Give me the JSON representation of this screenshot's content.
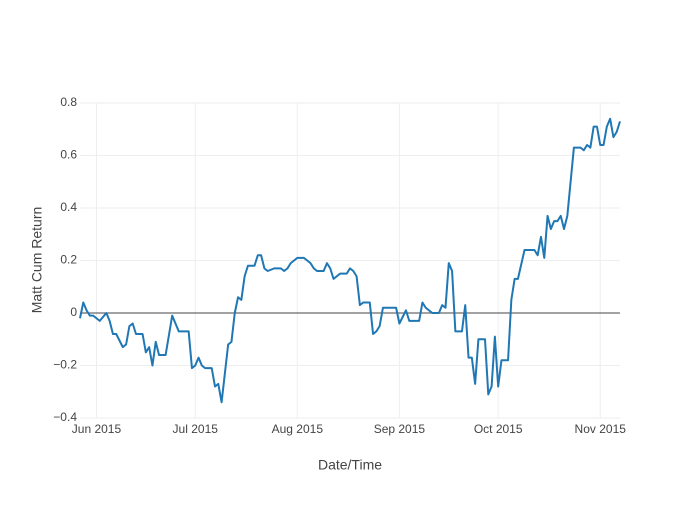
{
  "chart_data": {
    "type": "line",
    "xlabel": "Date/Time",
    "ylabel": "Matt Cum Return",
    "color": "#1f77b4",
    "grid": true,
    "zeroline": true,
    "x": [
      "2015-05-27",
      "2015-05-28",
      "2015-05-29",
      "2015-05-30",
      "2015-05-31",
      "2015-06-01",
      "2015-06-02",
      "2015-06-04",
      "2015-06-05",
      "2015-06-06",
      "2015-06-07",
      "2015-06-09",
      "2015-06-10",
      "2015-06-11",
      "2015-06-12",
      "2015-06-13",
      "2015-06-15",
      "2015-06-16",
      "2015-06-17",
      "2015-06-18",
      "2015-06-19",
      "2015-06-20",
      "2015-06-22",
      "2015-06-24",
      "2015-06-26",
      "2015-06-27",
      "2015-06-29",
      "2015-06-30",
      "2015-07-01",
      "2015-07-02",
      "2015-07-03",
      "2015-07-04",
      "2015-07-06",
      "2015-07-07",
      "2015-07-08",
      "2015-07-09",
      "2015-07-11",
      "2015-07-12",
      "2015-07-13",
      "2015-07-14",
      "2015-07-15",
      "2015-07-16",
      "2015-07-17",
      "2015-07-19",
      "2015-07-20",
      "2015-07-21",
      "2015-07-22",
      "2015-07-23",
      "2015-07-25",
      "2015-07-27",
      "2015-07-28",
      "2015-07-29",
      "2015-07-30",
      "2015-08-01",
      "2015-08-03",
      "2015-08-04",
      "2015-08-05",
      "2015-08-06",
      "2015-08-07",
      "2015-08-09",
      "2015-08-10",
      "2015-08-11",
      "2015-08-12",
      "2015-08-13",
      "2015-08-14",
      "2015-08-16",
      "2015-08-17",
      "2015-08-18",
      "2015-08-19",
      "2015-08-20",
      "2015-08-21",
      "2015-08-23",
      "2015-08-24",
      "2015-08-25",
      "2015-08-26",
      "2015-08-27",
      "2015-08-28",
      "2015-08-30",
      "2015-08-31",
      "2015-09-01",
      "2015-09-03",
      "2015-09-04",
      "2015-09-06",
      "2015-09-07",
      "2015-09-08",
      "2015-09-09",
      "2015-09-11",
      "2015-09-13",
      "2015-09-14",
      "2015-09-15",
      "2015-09-16",
      "2015-09-17",
      "2015-09-18",
      "2015-09-20",
      "2015-09-21",
      "2015-09-22",
      "2015-09-23",
      "2015-09-24",
      "2015-09-25",
      "2015-09-27",
      "2015-09-28",
      "2015-09-29",
      "2015-09-30",
      "2015-10-01",
      "2015-10-02",
      "2015-10-04",
      "2015-10-05",
      "2015-10-06",
      "2015-10-07",
      "2015-10-09",
      "2015-10-11",
      "2015-10-12",
      "2015-10-13",
      "2015-10-14",
      "2015-10-15",
      "2015-10-16",
      "2015-10-17",
      "2015-10-18",
      "2015-10-19",
      "2015-10-20",
      "2015-10-21",
      "2015-10-22",
      "2015-10-24",
      "2015-10-26",
      "2015-10-27",
      "2015-10-28",
      "2015-10-29",
      "2015-10-30",
      "2015-10-31",
      "2015-11-01",
      "2015-11-02",
      "2015-11-03",
      "2015-11-04",
      "2015-11-05",
      "2015-11-06",
      "2015-11-07"
    ],
    "values": [
      -0.02,
      0.04,
      0.01,
      -0.01,
      -0.01,
      -0.02,
      -0.03,
      0.0,
      -0.03,
      -0.08,
      -0.08,
      -0.13,
      -0.12,
      -0.05,
      -0.04,
      -0.08,
      -0.08,
      -0.15,
      -0.13,
      -0.2,
      -0.11,
      -0.16,
      -0.16,
      -0.01,
      -0.07,
      -0.07,
      -0.07,
      -0.21,
      -0.2,
      -0.17,
      -0.2,
      -0.21,
      -0.21,
      -0.28,
      -0.27,
      -0.34,
      -0.12,
      -0.11,
      0.0,
      0.06,
      0.05,
      0.14,
      0.18,
      0.18,
      0.22,
      0.22,
      0.17,
      0.16,
      0.17,
      0.17,
      0.16,
      0.17,
      0.19,
      0.21,
      0.21,
      0.2,
      0.19,
      0.17,
      0.16,
      0.16,
      0.19,
      0.17,
      0.13,
      0.14,
      0.15,
      0.15,
      0.17,
      0.16,
      0.14,
      0.03,
      0.04,
      0.04,
      -0.08,
      -0.07,
      -0.05,
      0.02,
      0.02,
      0.02,
      0.02,
      -0.04,
      0.01,
      -0.03,
      -0.03,
      -0.03,
      0.04,
      0.02,
      0.0,
      0.0,
      0.03,
      0.02,
      0.19,
      0.16,
      -0.07,
      -0.07,
      0.03,
      -0.17,
      -0.17,
      -0.27,
      -0.1,
      -0.1,
      -0.31,
      -0.28,
      -0.09,
      -0.28,
      -0.18,
      -0.18,
      0.05,
      0.13,
      0.13,
      0.24,
      0.24,
      0.24,
      0.22,
      0.29,
      0.21,
      0.37,
      0.32,
      0.35,
      0.35,
      0.37,
      0.32,
      0.37,
      0.63,
      0.63,
      0.62,
      0.64,
      0.63,
      0.71,
      0.71,
      0.64,
      0.64,
      0.71,
      0.74,
      0.67,
      0.69,
      0.73
    ],
    "xlim": [
      "2015-05-27",
      "2015-11-07"
    ],
    "xticks": [
      {
        "value": "2015-06-01",
        "label": "Jun 2015"
      },
      {
        "value": "2015-07-01",
        "label": "Jul 2015"
      },
      {
        "value": "2015-08-01",
        "label": "Aug 2015"
      },
      {
        "value": "2015-09-01",
        "label": "Sep 2015"
      },
      {
        "value": "2015-10-01",
        "label": "Oct 2015"
      },
      {
        "value": "2015-11-01",
        "label": "Nov 2015"
      }
    ],
    "ylim": [
      -0.4,
      0.8
    ],
    "yticks": [
      {
        "value": -0.4,
        "label": "−0.4"
      },
      {
        "value": -0.2,
        "label": "−0.2"
      },
      0,
      0.2,
      0.4,
      0.6,
      0.8
    ]
  }
}
